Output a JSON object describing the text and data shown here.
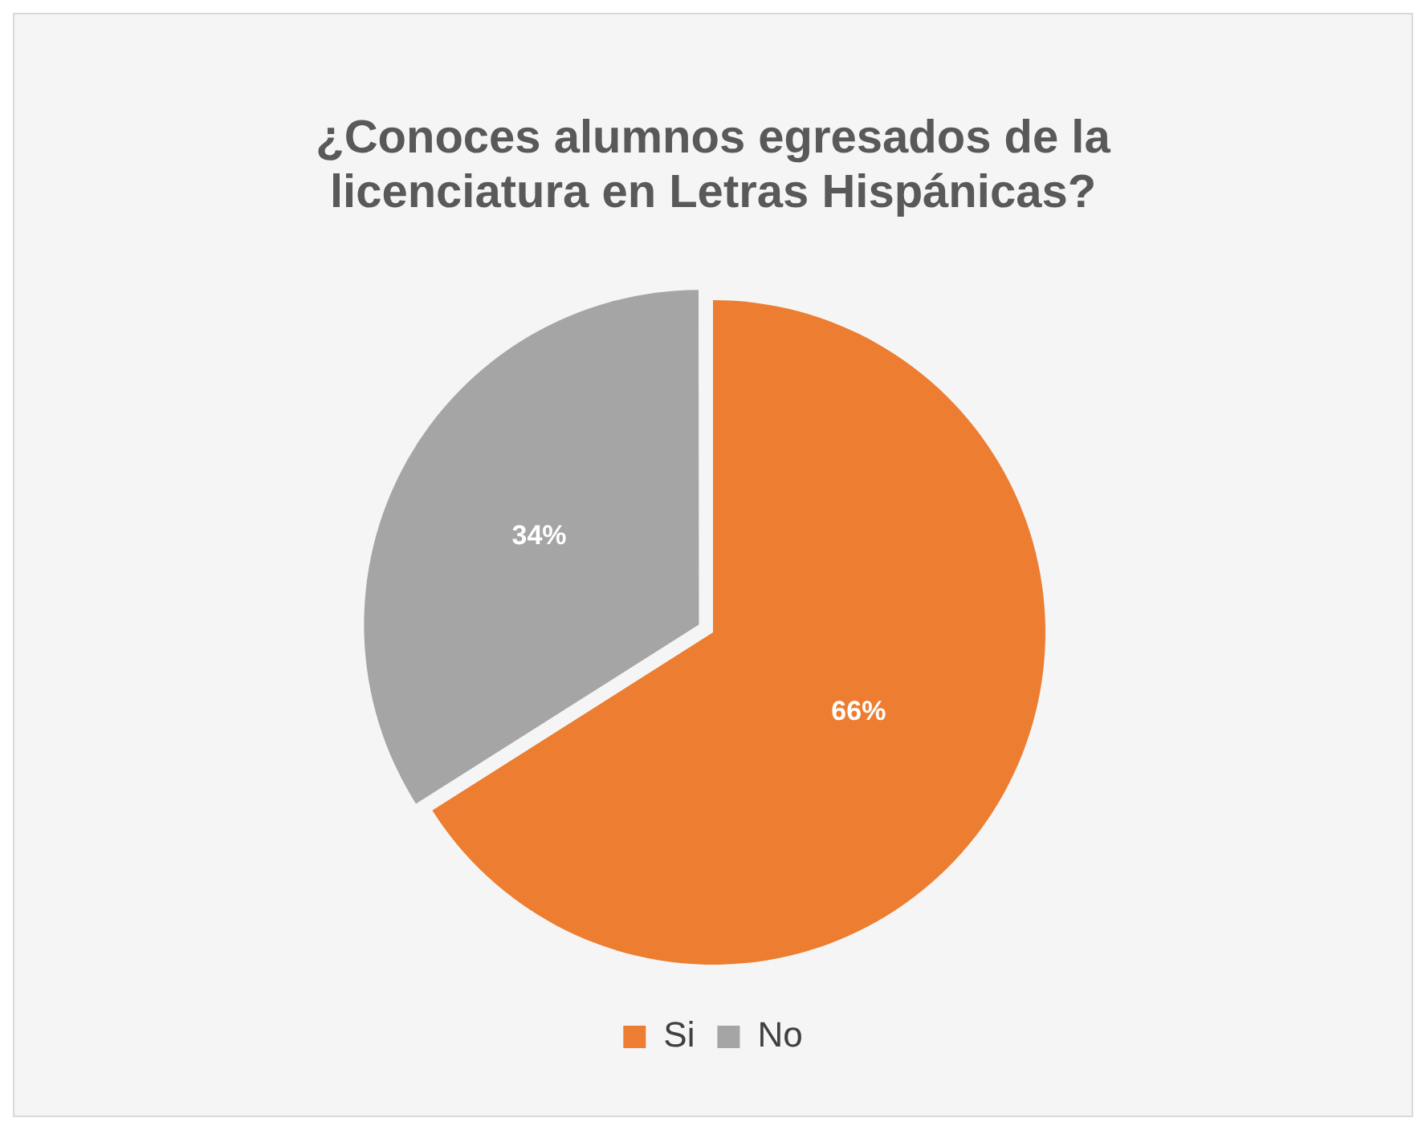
{
  "chart_data": {
    "type": "pie",
    "title": "¿Conoces alumnos egresados de la licenciatura en Letras Hispánicas?",
    "categories": [
      "Si",
      "No"
    ],
    "values": [
      66,
      34
    ],
    "colors": [
      "#ed7d31",
      "#a5a5a5"
    ],
    "value_labels": [
      "66%",
      "34%"
    ],
    "legend": "bottom"
  }
}
